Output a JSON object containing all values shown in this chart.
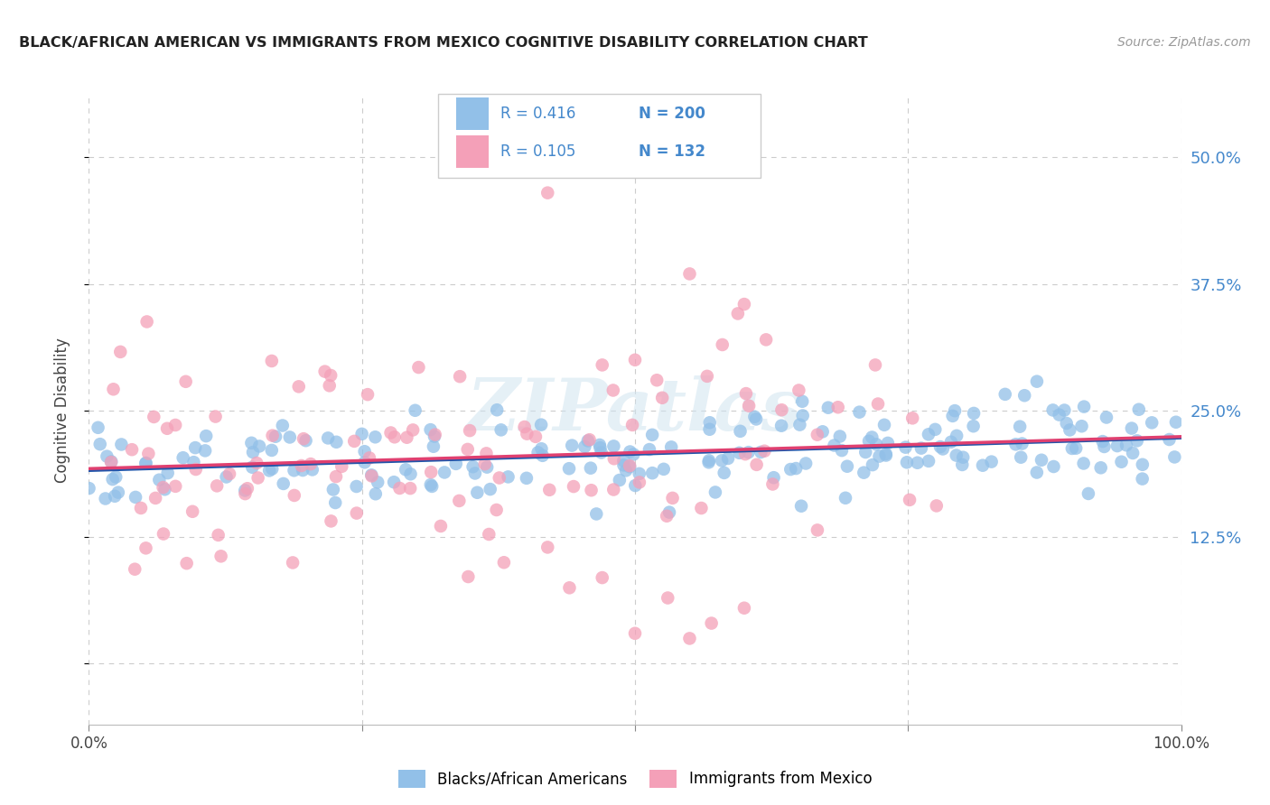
{
  "title": "BLACK/AFRICAN AMERICAN VS IMMIGRANTS FROM MEXICO COGNITIVE DISABILITY CORRELATION CHART",
  "source": "Source: ZipAtlas.com",
  "ylabel": "Cognitive Disability",
  "xlim": [
    0.0,
    1.0
  ],
  "ylim": [
    -0.06,
    0.56
  ],
  "yticks": [
    0.0,
    0.125,
    0.25,
    0.375,
    0.5
  ],
  "xticks": [
    0.0,
    0.25,
    0.5,
    0.75,
    1.0
  ],
  "blue_color": "#92C0E8",
  "pink_color": "#F4A0B8",
  "blue_line_color": "#2255AA",
  "pink_line_color": "#E04070",
  "R_blue": 0.416,
  "N_blue": 200,
  "R_pink": 0.105,
  "N_pink": 132,
  "legend_label_blue": "Blacks/African Americans",
  "legend_label_pink": "Immigrants from Mexico",
  "watermark": "ZIPatlas",
  "background_color": "#FFFFFF",
  "grid_color": "#CCCCCC",
  "tick_label_color_right": "#4488CC",
  "legend_text_color": "#4488CC"
}
